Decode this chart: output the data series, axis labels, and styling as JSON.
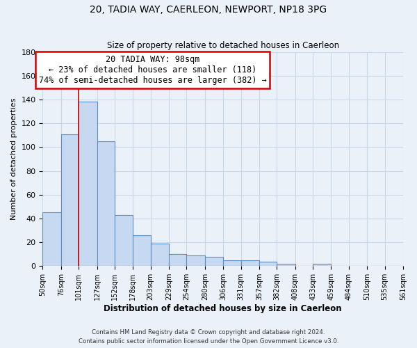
{
  "title": "20, TADIA WAY, CAERLEON, NEWPORT, NP18 3PG",
  "subtitle": "Size of property relative to detached houses in Caerleon",
  "bar_values": [
    45,
    111,
    138,
    105,
    43,
    26,
    19,
    10,
    9,
    8,
    5,
    5,
    4,
    2,
    0,
    2,
    0,
    0,
    0,
    0
  ],
  "bin_edges": [
    50,
    76,
    101,
    127,
    152,
    178,
    203,
    229,
    254,
    280,
    306,
    331,
    357,
    382,
    408,
    433,
    459,
    484,
    510,
    535,
    561
  ],
  "x_labels": [
    "50sqm",
    "76sqm",
    "101sqm",
    "127sqm",
    "152sqm",
    "178sqm",
    "203sqm",
    "229sqm",
    "254sqm",
    "280sqm",
    "306sqm",
    "331sqm",
    "357sqm",
    "382sqm",
    "408sqm",
    "433sqm",
    "459sqm",
    "484sqm",
    "510sqm",
    "535sqm",
    "561sqm"
  ],
  "bar_color": "#c6d9f0",
  "bar_edge_color": "#5b8ec4",
  "ylabel": "Number of detached properties",
  "xlabel": "Distribution of detached houses by size in Caerleon",
  "ylim": [
    0,
    180
  ],
  "yticks": [
    0,
    20,
    40,
    60,
    80,
    100,
    120,
    140,
    160,
    180
  ],
  "red_line_x": 101,
  "annotation_title": "20 TADIA WAY: 98sqm",
  "annotation_line1": "← 23% of detached houses are smaller (118)",
  "annotation_line2": "74% of semi-detached houses are larger (382) →",
  "annotation_box_color": "#ffffff",
  "annotation_box_edge": "#cc0000",
  "red_line_color": "#cc0000",
  "grid_color": "#c8d8e8",
  "background_color": "#eaf1f8",
  "footer_line1": "Contains HM Land Registry data © Crown copyright and database right 2024.",
  "footer_line2": "Contains public sector information licensed under the Open Government Licence v3.0."
}
